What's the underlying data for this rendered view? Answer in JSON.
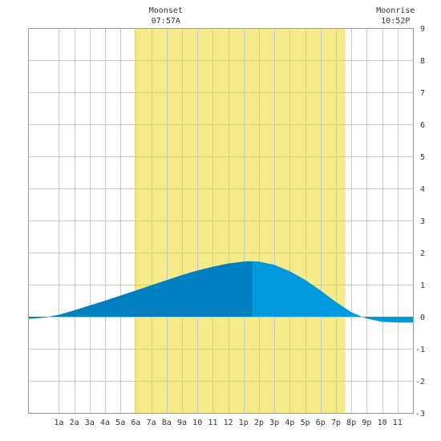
{
  "chart_data": {
    "type": "area",
    "title": "",
    "xlabel": "",
    "ylabel": "",
    "x_range_hours": [
      -1,
      24
    ],
    "ylim": [
      -3,
      9
    ],
    "y_ticks": [
      -3,
      -2,
      -1,
      0,
      1,
      2,
      3,
      4,
      5,
      6,
      7,
      8,
      9
    ],
    "x_tick_hours": [
      1,
      2,
      3,
      4,
      5,
      6,
      7,
      8,
      9,
      10,
      11,
      12,
      13,
      14,
      15,
      16,
      17,
      18,
      19,
      20,
      21,
      22,
      23
    ],
    "x_tick_labels": [
      "1a",
      "2a",
      "3a",
      "4a",
      "5a",
      "6a",
      "7a",
      "8a",
      "9a",
      "10",
      "11",
      "12",
      "1p",
      "2p",
      "3p",
      "4p",
      "5p",
      "6p",
      "7p",
      "8p",
      "9p",
      "10",
      "11"
    ],
    "grid": true,
    "daylight": {
      "start_hour": 5.9,
      "end_hour": 19.6,
      "color": "#f5eb8a"
    },
    "series": [
      {
        "x": [
          -1,
          0,
          1,
          2,
          3,
          4,
          5,
          6,
          7,
          8,
          9,
          10,
          11,
          12,
          13,
          13.6,
          14,
          15,
          16,
          17,
          18,
          19,
          20,
          21,
          22,
          23,
          24
        ],
        "values": [
          -0.07,
          -0.03,
          0.06,
          0.2,
          0.35,
          0.5,
          0.66,
          0.82,
          0.98,
          1.14,
          1.3,
          1.44,
          1.56,
          1.66,
          1.72,
          1.73,
          1.72,
          1.62,
          1.42,
          1.15,
          0.82,
          0.46,
          0.14,
          -0.06,
          -0.16,
          -0.18,
          -0.18
        ],
        "color_past": "#0080c0",
        "color_future": "#0099dd",
        "split_hour": 13.6
      }
    ],
    "annotations": [
      {
        "label": "Moonset",
        "time": "07:57A",
        "hour": 7.95
      },
      {
        "label": "Moonrise",
        "time": "10:52P",
        "hour": 22.87
      }
    ]
  }
}
